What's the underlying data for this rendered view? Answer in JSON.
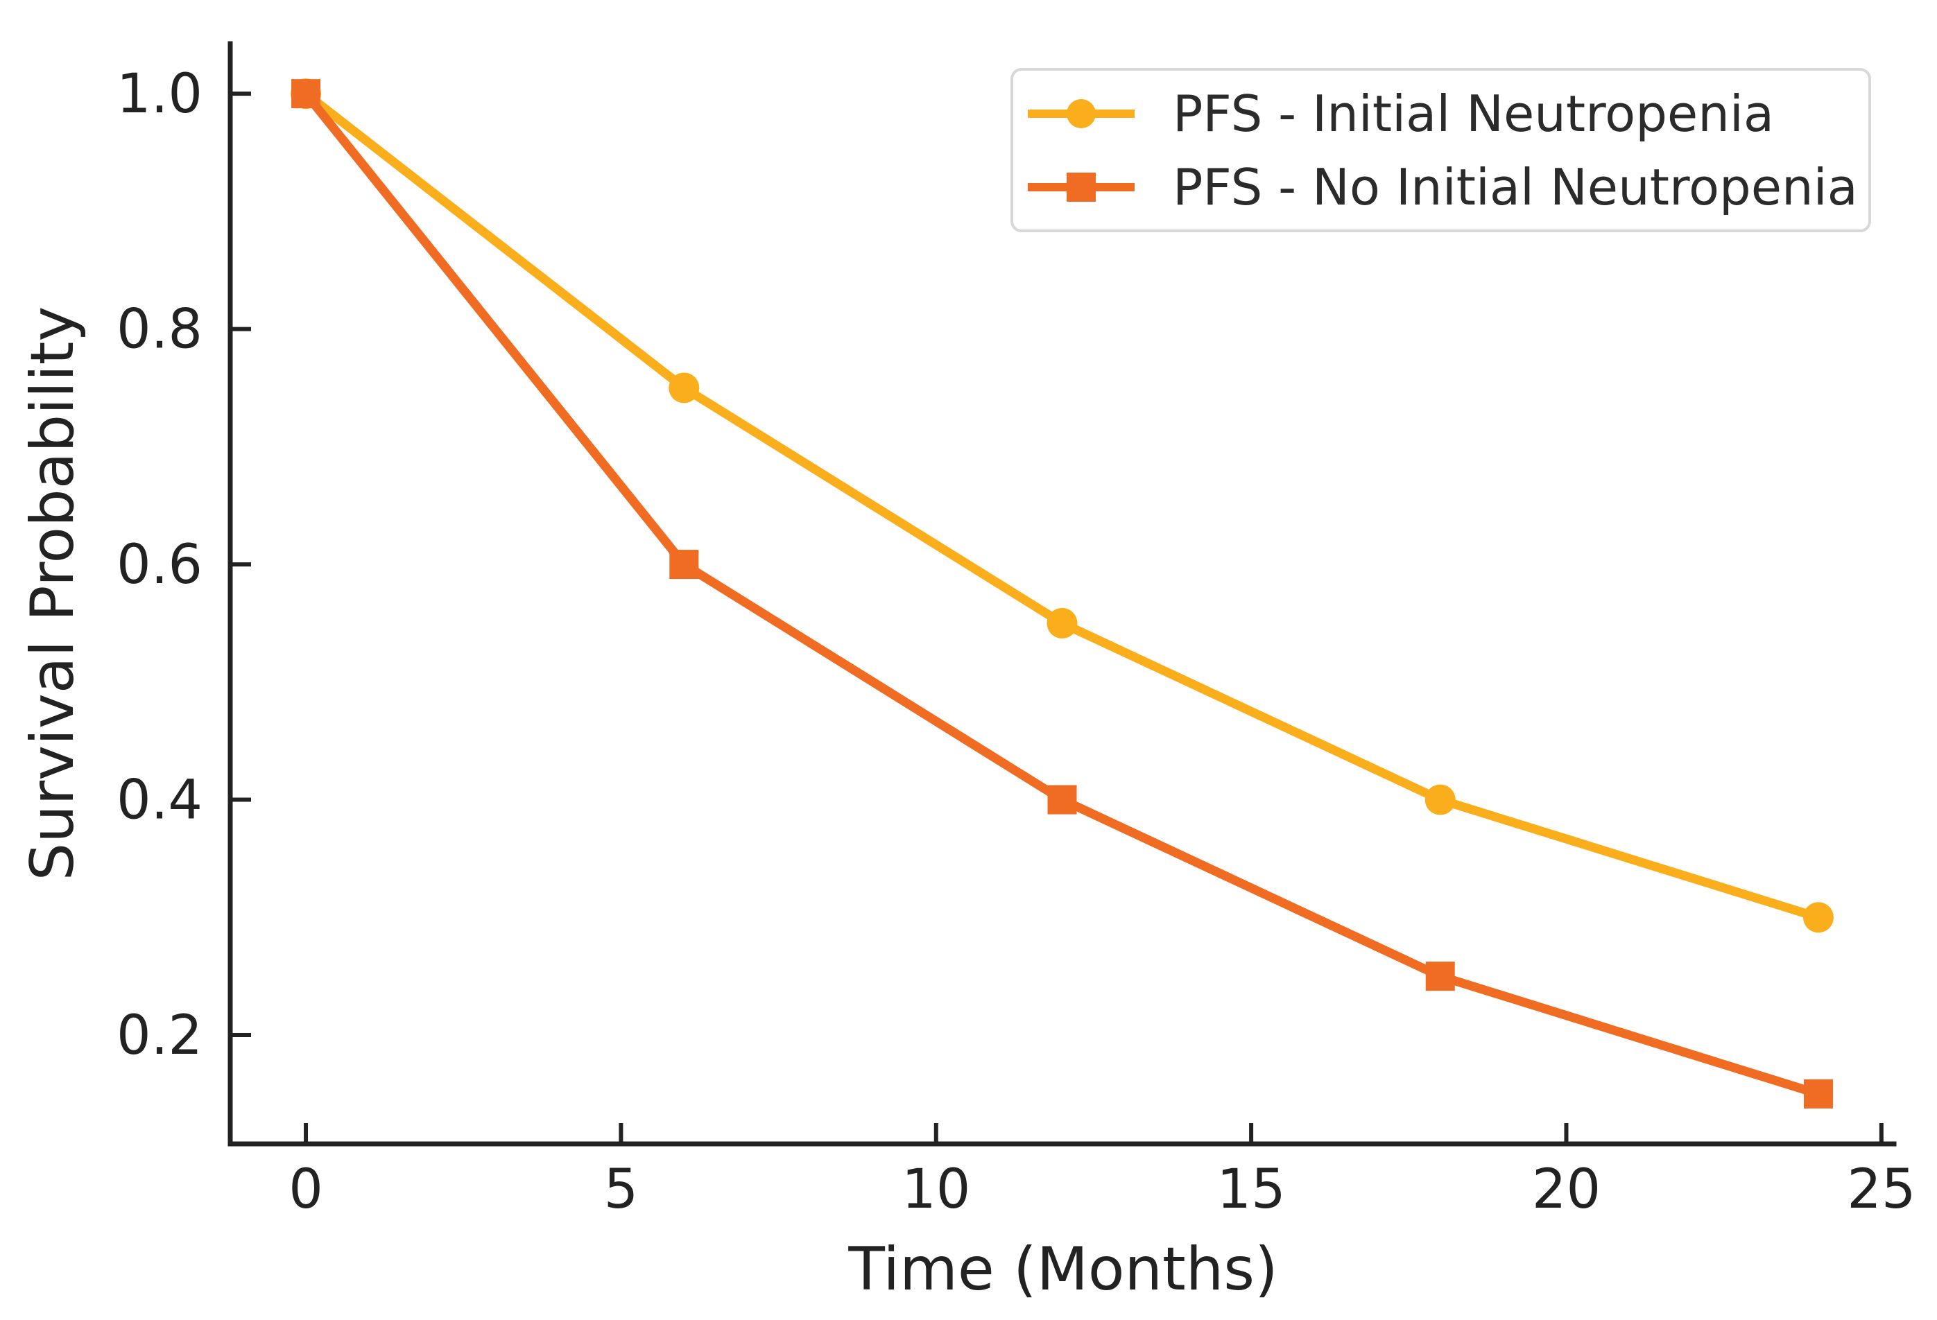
{
  "chart_data": {
    "type": "line",
    "title": "",
    "xlabel": "Time (Months)",
    "ylabel": "Survival Probability",
    "x": [
      0,
      6,
      12,
      18,
      24
    ],
    "series": [
      {
        "name": "PFS - Initial Neutropenia",
        "marker": "circle",
        "color": "#FBAE1B",
        "values": [
          1.0,
          0.75,
          0.55,
          0.4,
          0.3
        ]
      },
      {
        "name": "PFS - No Initial Neutropenia",
        "marker": "square",
        "color": "#EF6C22",
        "values": [
          1.0,
          0.6,
          0.4,
          0.25,
          0.15
        ]
      }
    ],
    "x_ticks": [
      0,
      5,
      10,
      15,
      20,
      25
    ],
    "y_ticks": [
      0.2,
      0.4,
      0.6,
      0.8,
      1.0
    ],
    "xlim": [
      -1.2,
      25.2
    ],
    "ylim": [
      0.1075,
      1.0425
    ],
    "grid": false,
    "legend_position": "upper right",
    "axis_color": "#222222",
    "text_color": "#2b2b2b",
    "legend_border_color": "#d8d8d8"
  }
}
